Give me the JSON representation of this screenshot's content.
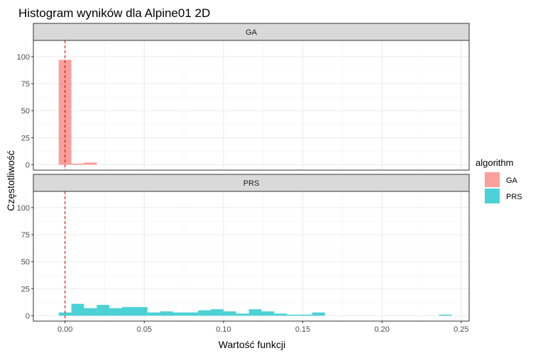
{
  "chart_data": {
    "type": "bar",
    "title": "Histogram wyników dla Alpine01 2D",
    "xlabel": "Wartość funkcji",
    "ylabel": "Częstotliwość",
    "xlim": [
      -0.02,
      0.255
    ],
    "ylim": [
      -5,
      115
    ],
    "x_ticks": [
      0.0,
      0.05,
      0.1,
      0.15,
      0.2,
      0.25
    ],
    "x_tick_labels": [
      "0.00",
      "0.05",
      "0.10",
      "0.15",
      "0.20",
      "0.25"
    ],
    "y_ticks": [
      0,
      25,
      50,
      75,
      100
    ],
    "y_tick_labels": [
      "0",
      "25",
      "50",
      "75",
      "100"
    ],
    "reference_line": {
      "x": 0,
      "style": "dashed",
      "color": "#cc0000"
    },
    "grid": true,
    "bin_width": 0.008,
    "legend": {
      "title": "algorithm",
      "position": "right",
      "entries": [
        {
          "label": "GA",
          "color": "#F8766D"
        },
        {
          "label": "PRS",
          "color": "#00BFC4"
        }
      ]
    },
    "panels": [
      {
        "strip_label": "GA",
        "series_name": "GA",
        "color": "#F8766D",
        "bins": [
          {
            "x0": -0.004,
            "x1": 0.004,
            "count": 97
          },
          {
            "x0": 0.004,
            "x1": 0.012,
            "count": 1
          },
          {
            "x0": 0.012,
            "x1": 0.02,
            "count": 2
          }
        ]
      },
      {
        "strip_label": "PRS",
        "series_name": "PRS",
        "color": "#00BFC4",
        "bins": [
          {
            "x0": -0.004,
            "x1": 0.004,
            "count": 3
          },
          {
            "x0": 0.004,
            "x1": 0.012,
            "count": 11
          },
          {
            "x0": 0.012,
            "x1": 0.02,
            "count": 7
          },
          {
            "x0": 0.02,
            "x1": 0.028,
            "count": 10
          },
          {
            "x0": 0.028,
            "x1": 0.036,
            "count": 7
          },
          {
            "x0": 0.036,
            "x1": 0.044,
            "count": 8
          },
          {
            "x0": 0.044,
            "x1": 0.052,
            "count": 8
          },
          {
            "x0": 0.052,
            "x1": 0.06,
            "count": 3
          },
          {
            "x0": 0.06,
            "x1": 0.068,
            "count": 4
          },
          {
            "x0": 0.068,
            "x1": 0.076,
            "count": 3
          },
          {
            "x0": 0.076,
            "x1": 0.084,
            "count": 3
          },
          {
            "x0": 0.084,
            "x1": 0.092,
            "count": 5
          },
          {
            "x0": 0.092,
            "x1": 0.1,
            "count": 6
          },
          {
            "x0": 0.1,
            "x1": 0.108,
            "count": 4
          },
          {
            "x0": 0.108,
            "x1": 0.116,
            "count": 2
          },
          {
            "x0": 0.116,
            "x1": 0.124,
            "count": 6
          },
          {
            "x0": 0.124,
            "x1": 0.132,
            "count": 4
          },
          {
            "x0": 0.132,
            "x1": 0.14,
            "count": 2
          },
          {
            "x0": 0.14,
            "x1": 0.148,
            "count": 1
          },
          {
            "x0": 0.148,
            "x1": 0.156,
            "count": 1
          },
          {
            "x0": 0.156,
            "x1": 0.164,
            "count": 3
          },
          {
            "x0": 0.236,
            "x1": 0.244,
            "count": 1
          }
        ]
      }
    ]
  }
}
